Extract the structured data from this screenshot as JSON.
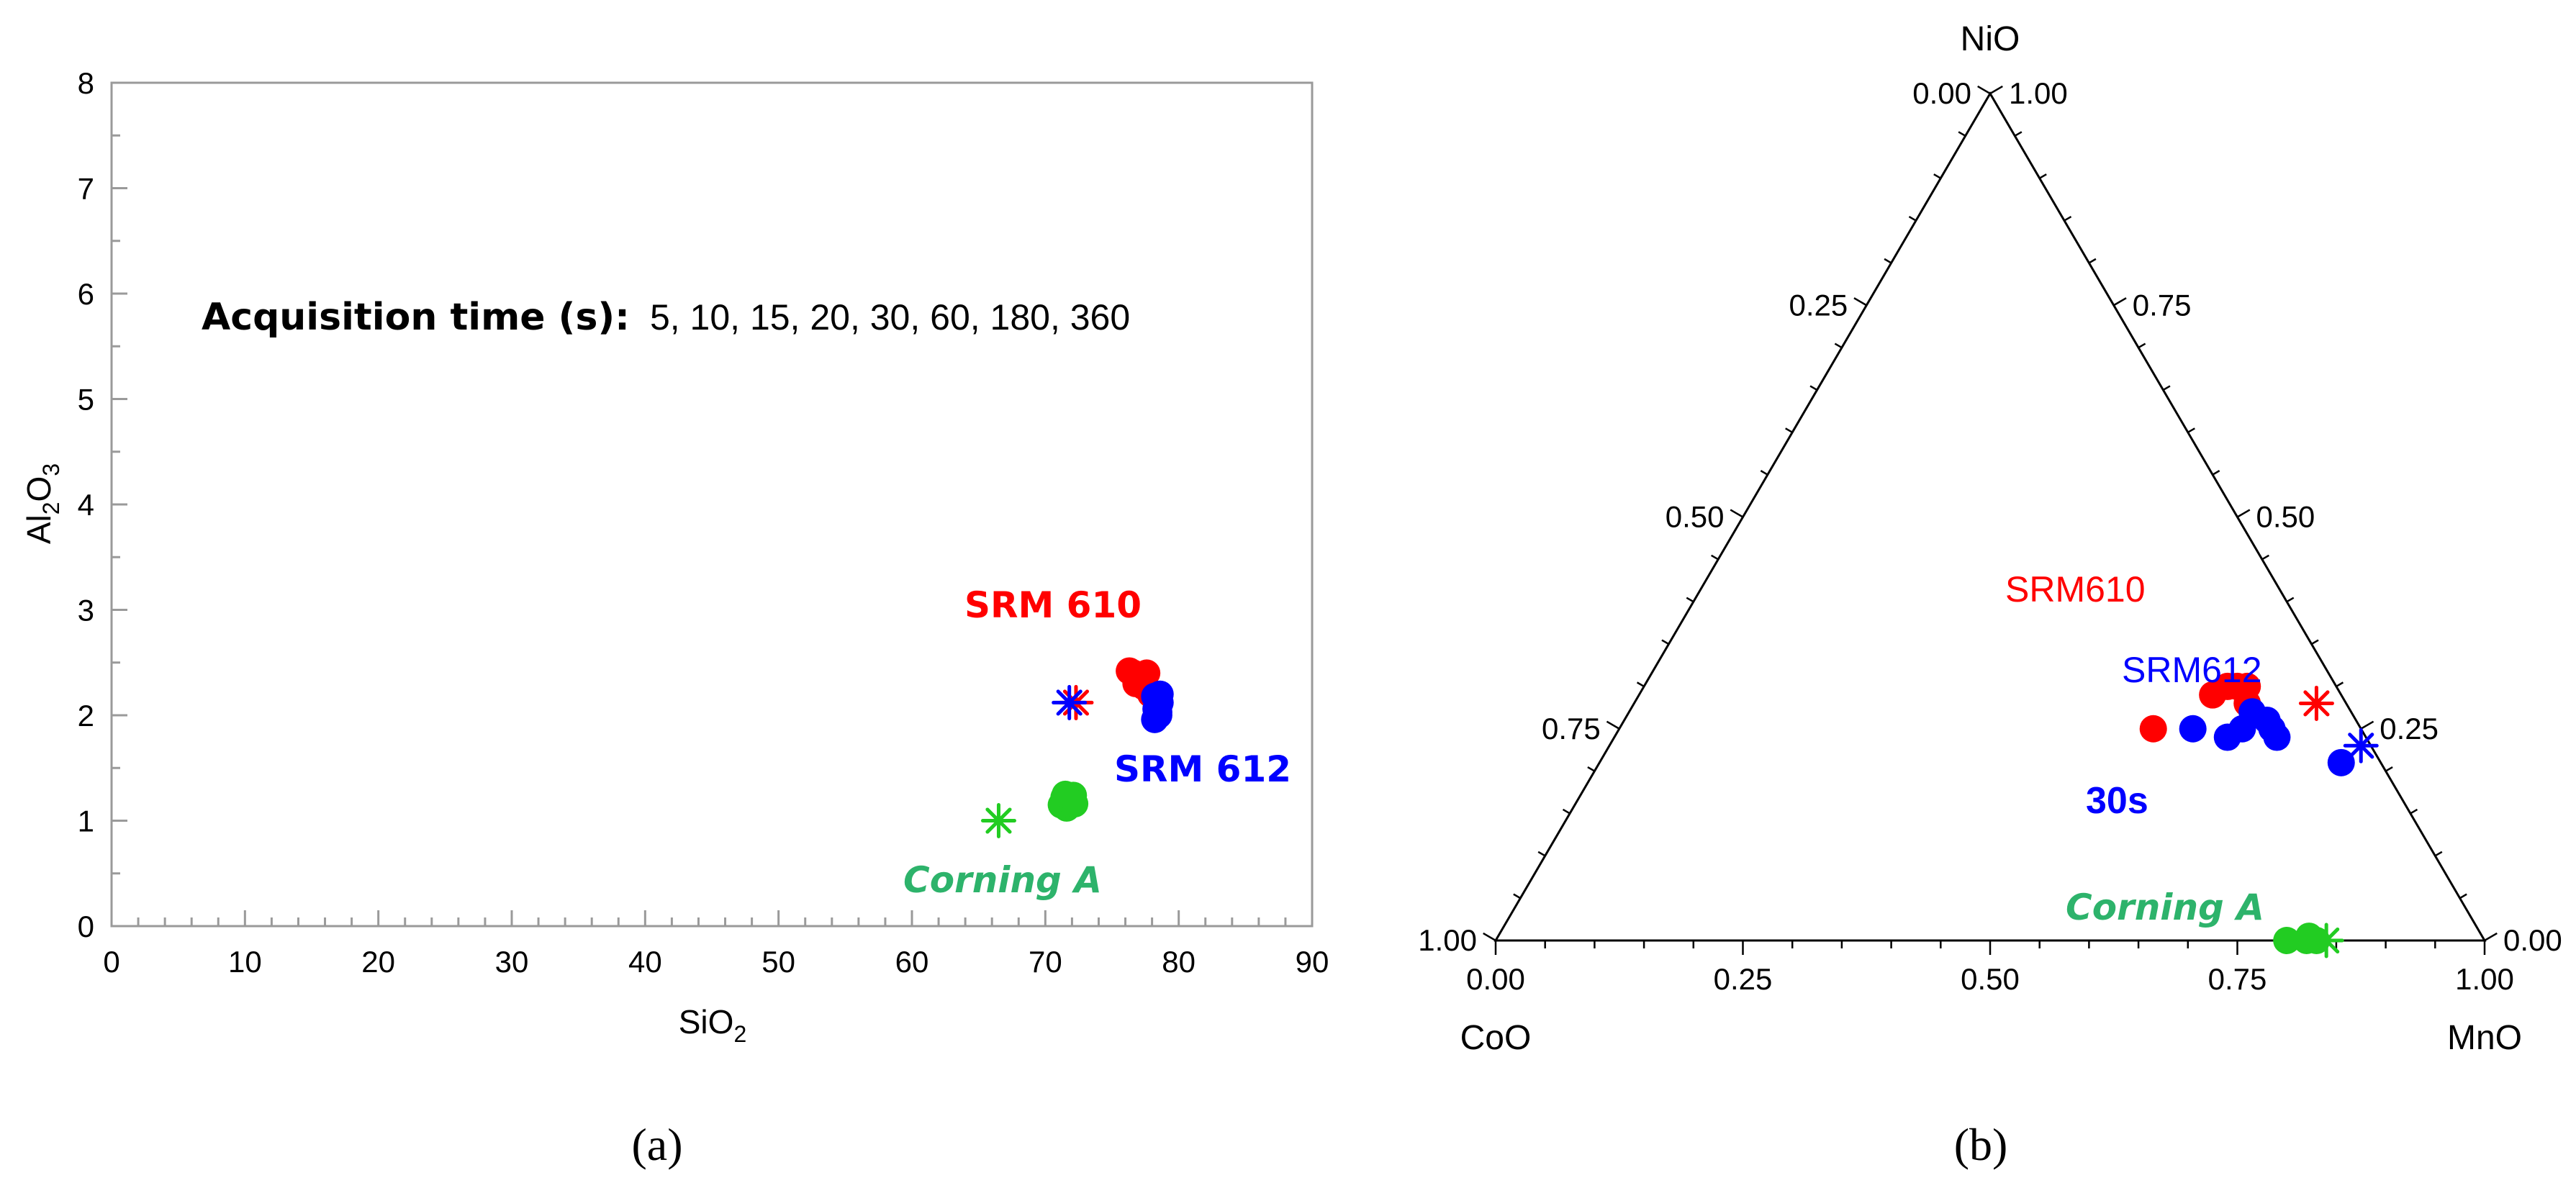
{
  "chart_data": [
    {
      "type": "scatter",
      "panel_label": "(a)",
      "xlabel": "SiO",
      "xlabel_sub": "2",
      "ylabel_parts": [
        "Al",
        "2",
        "O",
        "3"
      ],
      "xlim": [
        0,
        90
      ],
      "ylim": [
        0,
        8
      ],
      "x_ticks": [
        "0",
        "10",
        "20",
        "30",
        "40",
        "50",
        "60",
        "70",
        "80",
        "90"
      ],
      "y_ticks": [
        "0",
        "1",
        "2",
        "3",
        "4",
        "5",
        "6",
        "7",
        "8"
      ],
      "annotation_label": "Acquisition time (s):",
      "annotation_values": "5, 10, 15, 20, 30, 60, 180, 360",
      "series": [
        {
          "name": "SRM 610",
          "color": "#ff0000",
          "points": [
            [
              76.3,
              2.42
            ],
            [
              77.0,
              2.36
            ],
            [
              77.6,
              2.4
            ],
            [
              76.8,
              2.3
            ],
            [
              77.4,
              2.27
            ],
            [
              77.9,
              2.2
            ],
            [
              77.2,
              2.33
            ],
            [
              76.6,
              2.4
            ]
          ],
          "reference": [
            72.3,
            2.12
          ]
        },
        {
          "name": "SRM 612",
          "color": "#0000ff",
          "points": [
            [
              78.2,
              2.18
            ],
            [
              78.6,
              2.12
            ],
            [
              78.3,
              2.06
            ],
            [
              78.5,
              2.0
            ],
            [
              78.2,
              1.96
            ],
            [
              78.6,
              2.2
            ],
            [
              78.4,
              2.1
            ],
            [
              78.5,
              2.03
            ]
          ],
          "reference": [
            71.8,
            2.12
          ]
        },
        {
          "name": "Corning A",
          "color": "#22cc22",
          "label_color": "#2db36b",
          "points": [
            [
              71.4,
              1.22
            ],
            [
              72.0,
              1.18
            ],
            [
              71.6,
              1.12
            ],
            [
              72.1,
              1.24
            ],
            [
              71.2,
              1.15
            ],
            [
              71.7,
              1.2
            ],
            [
              72.2,
              1.16
            ],
            [
              71.5,
              1.25
            ]
          ],
          "reference": [
            66.5,
            1.0
          ]
        }
      ]
    },
    {
      "type": "ternary",
      "panel_label": "(b)",
      "axes": {
        "top": "NiO",
        "left": "CoO",
        "right": "MnO"
      },
      "left_edge_ticks": [
        "1.00",
        "0.75",
        "0.50",
        "0.25",
        "0.00"
      ],
      "right_edge_ticks": [
        "1.00",
        "0.75",
        "0.50",
        "0.25",
        "0.00"
      ],
      "bottom_edge_ticks": [
        "0.00",
        "0.25",
        "0.50",
        "0.75",
        "1.00"
      ],
      "series": [
        {
          "name": "SRM610",
          "color": "#ff0000",
          "points": [
            {
              "NiO": 0.29,
              "MnO": 0.58
            },
            {
              "NiO": 0.3,
              "MnO": 0.6
            },
            {
              "NiO": 0.3,
              "MnO": 0.61
            },
            {
              "NiO": 0.28,
              "MnO": 0.62
            },
            {
              "NiO": 0.3,
              "MnO": 0.59
            },
            {
              "NiO": 0.25,
              "MnO": 0.54
            }
          ],
          "reference": {
            "NiO": 0.28,
            "MnO": 0.69
          }
        },
        {
          "name": "SRM612",
          "color": "#0000ff",
          "points": [
            {
              "NiO": 0.27,
              "MnO": 0.63
            },
            {
              "NiO": 0.25,
              "MnO": 0.63
            },
            {
              "NiO": 0.26,
              "MnO": 0.65
            },
            {
              "NiO": 0.25,
              "MnO": 0.66
            },
            {
              "NiO": 0.24,
              "MnO": 0.67
            },
            {
              "NiO": 0.25,
              "MnO": 0.58
            },
            {
              "NiO": 0.24,
              "MnO": 0.62
            },
            {
              "NiO": 0.21,
              "MnO": 0.75
            }
          ],
          "reference": {
            "NiO": 0.23,
            "MnO": 0.76
          },
          "annotation": "30s"
        },
        {
          "name": "Corning A",
          "color": "#22cc22",
          "label_color": "#2db36b",
          "points": [
            {
              "NiO": 0.0,
              "MnO": 0.8
            },
            {
              "NiO": 0.005,
              "MnO": 0.82
            },
            {
              "NiO": 0.0,
              "MnO": 0.83
            },
            {
              "NiO": 0.0,
              "MnO": 0.82
            }
          ],
          "reference": {
            "NiO": 0.0,
            "MnO": 0.84
          }
        }
      ]
    }
  ]
}
